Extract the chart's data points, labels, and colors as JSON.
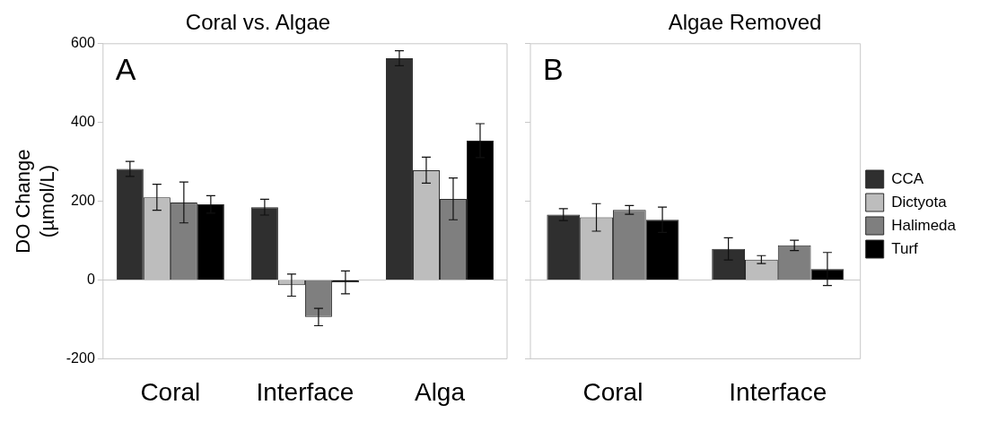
{
  "chart_data": [
    {
      "type": "bar",
      "title": "Coral vs. Algae",
      "ylabel": "DO Change\n(µmol/L)",
      "categories": [
        "Coral",
        "Interface",
        "Alga"
      ],
      "annotations": [
        "A"
      ],
      "ylim": [
        -200,
        600
      ],
      "yticks": [
        -200,
        0,
        200,
        400,
        600
      ],
      "legend": false,
      "series": [
        {
          "color": "#2f2f2f",
          "values": [
            282,
            185,
            563
          ],
          "errors": [
            19,
            20,
            19
          ]
        },
        {
          "color": "#bdbdbd",
          "values": [
            210,
            -13,
            279
          ],
          "errors": [
            33,
            28,
            33
          ]
        },
        {
          "color": "#7f7f7f",
          "values": [
            197,
            -94,
            206
          ],
          "errors": [
            52,
            22,
            53
          ]
        },
        {
          "color": "#000000",
          "values": [
            192,
            -6,
            354
          ],
          "errors": [
            22,
            29,
            43
          ]
        }
      ]
    },
    {
      "type": "bar",
      "title": "Algae Removed",
      "categories": [
        "Coral",
        "Interface"
      ],
      "annotations": [
        "B"
      ],
      "ylim": [
        -200,
        600
      ],
      "yticks": [
        -200,
        0,
        200,
        400,
        600
      ],
      "tick_labels": "x",
      "legend": "right",
      "series": [
        {
          "name": "CCA",
          "color": "#2f2f2f",
          "values": [
            166,
            79
          ],
          "errors": [
            15,
            28
          ]
        },
        {
          "name": "Dictyota",
          "color": "#bdbdbd",
          "values": [
            159,
            52
          ],
          "errors": [
            35,
            10
          ]
        },
        {
          "name": "Halimeda",
          "color": "#7f7f7f",
          "values": [
            178,
            88
          ],
          "errors": [
            11,
            13
          ]
        },
        {
          "name": "Turf",
          "color": "#000000",
          "values": [
            153,
            28
          ],
          "errors": [
            32,
            42
          ]
        }
      ]
    }
  ]
}
